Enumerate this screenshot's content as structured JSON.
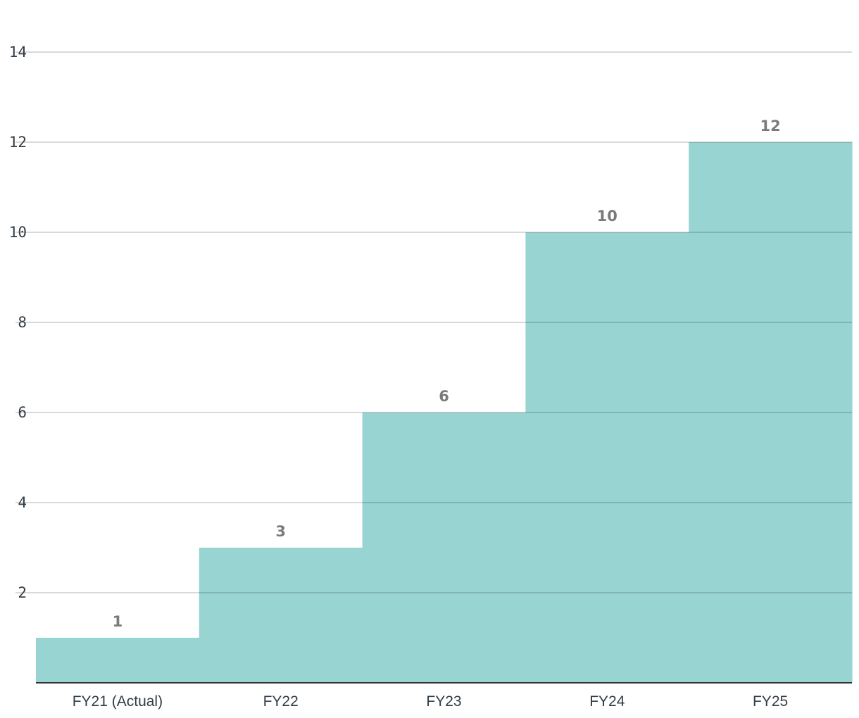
{
  "chart_data": {
    "type": "bar",
    "categories": [
      "FY21 (Actual)",
      "FY22",
      "FY23",
      "FY24",
      "FY25"
    ],
    "values": [
      1,
      3,
      6,
      10,
      12
    ],
    "data_labels": [
      "1",
      "3",
      "6",
      "10",
      "12"
    ],
    "title": "",
    "xlabel": "",
    "ylabel": "",
    "ylim": [
      0,
      14
    ],
    "yticks": [
      2,
      4,
      6,
      8,
      10,
      12,
      14
    ],
    "ytick_labels": [
      "2",
      "4",
      "6",
      "8",
      "10",
      "12",
      "14"
    ],
    "grid": true,
    "colors": {
      "bar": "#98d4d2",
      "grid": "#cccccc",
      "axis": "#333333",
      "tick_text": "#333d47",
      "data_label_text": "#7a7a7a"
    }
  }
}
